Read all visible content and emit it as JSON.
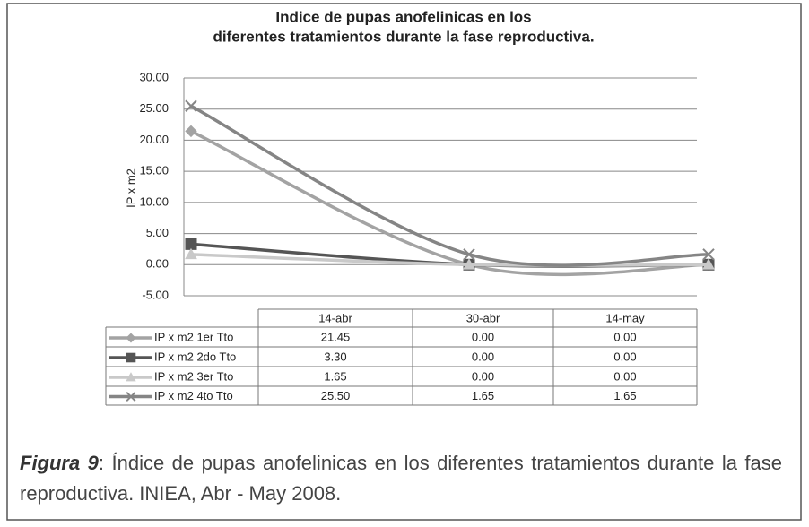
{
  "chart_data": {
    "type": "line",
    "title": "Indice de pupas anofelinicas en los",
    "subtitle": "diferentes tratamientos durante la fase reproductiva.",
    "y_label": "IP x m2",
    "categories": [
      "14-abr",
      "30-abr",
      "14-may"
    ],
    "series": [
      {
        "name": "IP x m2 1er Tto",
        "color": "#a3a3a3",
        "marker": "diamond",
        "values": [
          21.45,
          0,
          0
        ],
        "value_labels": [
          "21.45",
          "0.00",
          "0.00"
        ]
      },
      {
        "name": "IP x m2 2do Tto",
        "color": "#555555",
        "marker": "square",
        "values": [
          3.3,
          0,
          0
        ],
        "value_labels": [
          "3.30",
          "0.00",
          "0.00"
        ]
      },
      {
        "name": "IP x m2 3er Tto",
        "color": "#c9c9c9",
        "marker": "triangle",
        "values": [
          1.65,
          0,
          0
        ],
        "value_labels": [
          "1.65",
          "0.00",
          "0.00"
        ]
      },
      {
        "name": "IP x m2 4to Tto",
        "color": "#858585",
        "marker": "x",
        "values": [
          25.5,
          1.65,
          1.65
        ],
        "value_labels": [
          "25.50",
          "1.65",
          "1.65"
        ]
      }
    ],
    "ylim": [
      -5,
      30
    ],
    "yticks": [
      {
        "value": -5,
        "label": "-5.00"
      },
      {
        "value": 0,
        "label": "0.00"
      },
      {
        "value": 5,
        "label": "5.00"
      },
      {
        "value": 10,
        "label": "10.00"
      },
      {
        "value": 15,
        "label": "15.00"
      },
      {
        "value": 20,
        "label": "20.00"
      },
      {
        "value": 25,
        "label": "25.00"
      },
      {
        "value": 30,
        "label": "30.00"
      }
    ],
    "grid": true,
    "smooth": true
  },
  "caption": {
    "label": "Figura 9",
    "text": ": Índice de pupas anofelinicas en los diferentes tratamientos durante la fase reproductiva. INIEA, Abr - May 2008."
  }
}
